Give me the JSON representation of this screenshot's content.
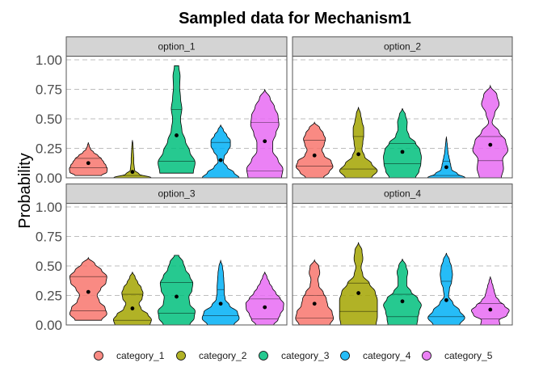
{
  "chart_data": {
    "type": "violin",
    "title": "Sampled data for Mechanism1",
    "xlabel": "",
    "ylabel": "Probability",
    "ylim": [
      0,
      1.03
    ],
    "yticks": [
      "0.00",
      "0.25",
      "0.50",
      "0.75",
      "1.00"
    ],
    "ytick_values": [
      0,
      0.25,
      0.5,
      0.75,
      1.0
    ],
    "grid": "horizontal dashed",
    "legend_position": "bottom",
    "categories": [
      "category_1",
      "category_2",
      "category_3",
      "category_4",
      "category_5"
    ],
    "colors": [
      "#F8766D",
      "#A3A500",
      "#00BF7D",
      "#00B0F6",
      "#E76BF3"
    ],
    "facets": [
      {
        "name": "option_1",
        "violins": [
          {
            "lo": 0.02,
            "hi": 0.3,
            "q": [
              0.085,
              0.165
            ],
            "mean": 0.125,
            "profile": [
              0.3,
              0.42,
              0.43,
              0.4,
              0.35,
              0.3,
              0.22,
              0.12,
              0.05,
              0.02,
              0
            ]
          },
          {
            "lo": 0.0,
            "hi": 0.32,
            "q": [
              0.0,
              0.02
            ],
            "mean": 0.05,
            "profile": [
              0.43,
              0.15,
              0.05,
              0.04,
              0.03,
              0.03,
              0.025,
              0.02,
              0.015,
              0.01,
              0
            ]
          },
          {
            "lo": 0.04,
            "hi": 0.95,
            "q": [
              0.14,
              0.58
            ],
            "mean": 0.36,
            "profile": [
              0.38,
              0.42,
              0.3,
              0.2,
              0.12,
              0.09,
              0.12,
              0.09,
              0.07,
              0.08,
              0.05
            ]
          },
          {
            "lo": 0.0,
            "hi": 0.45,
            "q": [
              0.15,
              0.3
            ],
            "mean": 0.15,
            "profile": [
              0.42,
              0.3,
              0.15,
              0.06,
              0.08,
              0.16,
              0.22,
              0.22,
              0.14,
              0.06,
              0
            ]
          },
          {
            "lo": 0.0,
            "hi": 0.75,
            "q": [
              0.06,
              0.47
            ],
            "mean": 0.31,
            "profile": [
              0.38,
              0.41,
              0.3,
              0.18,
              0.18,
              0.25,
              0.32,
              0.3,
              0.22,
              0.12,
              0
            ]
          }
        ]
      },
      {
        "name": "option_2",
        "violins": [
          {
            "lo": 0.0,
            "hi": 0.47,
            "q": [
              0.1,
              0.32
            ],
            "mean": 0.19,
            "profile": [
              0.2,
              0.33,
              0.42,
              0.38,
              0.22,
              0.17,
              0.22,
              0.25,
              0.2,
              0.12,
              0
            ]
          },
          {
            "lo": 0.0,
            "hi": 0.6,
            "q": [
              0.075,
              0.35
            ],
            "mean": 0.2,
            "profile": [
              0.3,
              0.43,
              0.3,
              0.14,
              0.08,
              0.1,
              0.12,
              0.12,
              0.08,
              0.05,
              0
            ]
          },
          {
            "lo": 0.0,
            "hi": 0.59,
            "q": [
              0.12,
              0.29
            ],
            "mean": 0.22,
            "profile": [
              0.3,
              0.38,
              0.42,
              0.43,
              0.4,
              0.3,
              0.15,
              0.1,
              0.11,
              0.07,
              0
            ]
          },
          {
            "lo": 0.0,
            "hi": 0.35,
            "q": [
              0.02,
              0.14
            ],
            "mean": 0.09,
            "profile": [
              0.43,
              0.25,
              0.12,
              0.1,
              0.08,
              0.06,
              0.04,
              0.03,
              0.02,
              0.01,
              0
            ]
          },
          {
            "lo": 0.0,
            "hi": 0.78,
            "q": [
              0.145,
              0.35
            ],
            "mean": 0.28,
            "profile": [
              0.25,
              0.3,
              0.28,
              0.4,
              0.35,
              0.2,
              0.04,
              0.1,
              0.2,
              0.15,
              0
            ]
          }
        ]
      },
      {
        "name": "option_3",
        "violins": [
          {
            "lo": 0.04,
            "hi": 0.57,
            "q": [
              0.12,
              0.41
            ],
            "mean": 0.28,
            "profile": [
              0.3,
              0.42,
              0.38,
              0.25,
              0.2,
              0.28,
              0.4,
              0.42,
              0.3,
              0.15,
              0
            ]
          },
          {
            "lo": 0.0,
            "hi": 0.45,
            "q": [
              0.04,
              0.26
            ],
            "mean": 0.14,
            "profile": [
              0.4,
              0.43,
              0.35,
              0.2,
              0.15,
              0.22,
              0.24,
              0.2,
              0.12,
              0.06,
              0
            ]
          },
          {
            "lo": 0.0,
            "hi": 0.59,
            "q": [
              0.1,
              0.36
            ],
            "mean": 0.24,
            "profile": [
              0.3,
              0.4,
              0.42,
              0.3,
              0.28,
              0.35,
              0.37,
              0.3,
              0.2,
              0.15,
              0.05
            ]
          },
          {
            "lo": 0.0,
            "hi": 0.55,
            "q": [
              0.08,
              0.3
            ],
            "mean": 0.18,
            "profile": [
              0.3,
              0.42,
              0.38,
              0.2,
              0.1,
              0.08,
              0.08,
              0.07,
              0.06,
              0.04,
              0
            ]
          },
          {
            "lo": 0.0,
            "hi": 0.45,
            "q": [
              0.05,
              0.22
            ],
            "mean": 0.15,
            "profile": [
              0.2,
              0.3,
              0.35,
              0.42,
              0.43,
              0.35,
              0.25,
              0.17,
              0.1,
              0.05,
              0
            ]
          }
        ]
      },
      {
        "name": "option_4",
        "violins": [
          {
            "lo": 0.0,
            "hi": 0.55,
            "q": [
              0.06,
              0.25
            ],
            "mean": 0.18,
            "profile": [
              0.35,
              0.43,
              0.4,
              0.3,
              0.27,
              0.2,
              0.1,
              0.08,
              0.12,
              0.1,
              0
            ]
          },
          {
            "lo": 0.0,
            "hi": 0.7,
            "q": [
              0.115,
              0.355
            ],
            "mean": 0.27,
            "profile": [
              0.4,
              0.43,
              0.43,
              0.43,
              0.38,
              0.25,
              0.1,
              0.06,
              0.1,
              0.08,
              0
            ]
          },
          {
            "lo": 0.0,
            "hi": 0.56,
            "q": [
              0.07,
              0.26
            ],
            "mean": 0.2,
            "profile": [
              0.33,
              0.35,
              0.38,
              0.43,
              0.35,
              0.2,
              0.1,
              0.1,
              0.12,
              0.08,
              0
            ]
          },
          {
            "lo": 0.0,
            "hi": 0.61,
            "q": [
              0.07,
              0.37
            ],
            "mean": 0.21,
            "profile": [
              0.3,
              0.42,
              0.3,
              0.15,
              0.05,
              0.07,
              0.12,
              0.14,
              0.12,
              0.07,
              0
            ]
          },
          {
            "lo": 0.0,
            "hi": 0.41,
            "q": [
              0.05,
              0.18
            ],
            "mean": 0.13,
            "profile": [
              0.22,
              0.2,
              0.38,
              0.43,
              0.32,
              0.2,
              0.12,
              0.09,
              0.06,
              0.03,
              0
            ]
          }
        ]
      }
    ]
  }
}
